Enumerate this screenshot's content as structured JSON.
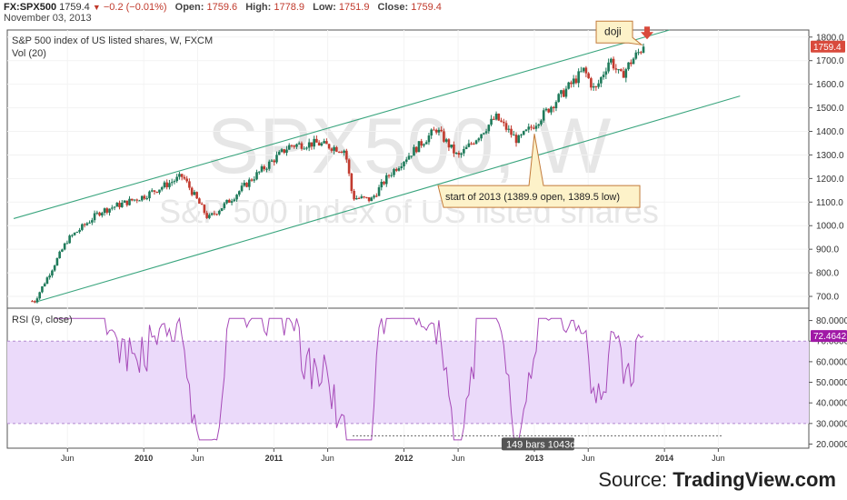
{
  "header": {
    "symbol": "FX:SPX500",
    "last": "1759.4",
    "change": "−0.2 (−0.01%)",
    "open_label": "Open:",
    "open": "1759.6",
    "high_label": "High:",
    "high": "1778.9",
    "low_label": "Low:",
    "low": "1751.9",
    "close_label": "Close:",
    "close": "1759.4",
    "date": "November 03, 2013",
    "down_arrow_icon": "triangle-down-icon"
  },
  "main_pane": {
    "title": "S&P 500 index of US listed shares, W, FXCM",
    "volume_label": "Vol (20)",
    "watermark_symbol": "SPX500, W",
    "watermark_desc": "S&P 500 index of US listed shares",
    "price_tag": "1759.4",
    "annotation_doji": "doji",
    "annotation_start": "start of 2013 (1389.9 open, 1389.5 low)",
    "arrow_icon": "red-down-arrow-icon"
  },
  "rsi_pane": {
    "title": "RSI (9, close)",
    "value_tag": "72.4642",
    "measure_label": "149 bars 1043d"
  },
  "colors": {
    "up": "#1e7a5a",
    "down": "#c23a2e",
    "channel": "#3aa57e",
    "rsi_line": "#a64ab8",
    "rsi_band": "#ebdafa",
    "price_tag": "#d94a3c",
    "rsi_tag": "#a019a6",
    "annotation_bg": "#fdf2c9",
    "annotation_border": "#c27a3a"
  },
  "source": {
    "prefix": "Source: ",
    "brand": "TradingView.com"
  },
  "chart_data": [
    {
      "type": "candlestick",
      "title": "S&P 500 index of US listed shares, W, FXCM",
      "x_ticks": [
        "Jun",
        "2010",
        "Jun",
        "2011",
        "Jun",
        "2012",
        "Jun",
        "2013",
        "Jun",
        "2014",
        "Jun"
      ],
      "y_ticks": [
        "700.0",
        "800.0",
        "900.0",
        "1000.0",
        "1100.0",
        "1200.0",
        "1300.0",
        "1400.0",
        "1500.0",
        "1600.0",
        "1700.0",
        "1800.0"
      ],
      "ylim": [
        650,
        1830
      ],
      "series_anchor_dates": [
        "2009-03-01",
        "2009-06-01",
        "2009-09-01",
        "2010-01-01",
        "2010-04-20",
        "2010-07-01",
        "2010-09-01",
        "2010-11-01",
        "2011-02-15",
        "2011-05-01",
        "2011-07-20",
        "2011-08-10",
        "2011-10-01",
        "2011-11-20",
        "2012-01-01",
        "2012-04-01",
        "2012-06-01",
        "2012-09-15",
        "2012-11-15",
        "2013-01-01",
        "2013-05-20",
        "2013-06-20",
        "2013-08-01",
        "2013-08-30",
        "2013-10-01",
        "2013-11-03"
      ],
      "series_anchor_closes": [
        680,
        940,
        1060,
        1125,
        1210,
        1030,
        1110,
        1200,
        1340,
        1350,
        1320,
        1120,
        1110,
        1215,
        1280,
        1410,
        1290,
        1460,
        1360,
        1430,
        1660,
        1570,
        1710,
        1630,
        1700,
        1759.4
      ],
      "last_price": 1759.4,
      "channel_upper": [
        {
          "x": "2009-01-01",
          "y": 1030
        },
        {
          "x": "2014-01-15",
          "y": 1830
        }
      ],
      "channel_lower": [
        {
          "x": "2009-03-01",
          "y": 675
        },
        {
          "x": "2014-08-01",
          "y": 1550
        }
      ],
      "annotations": [
        {
          "text": "doji",
          "at": "2013-11-03"
        },
        {
          "text": "start of 2013 (1389.9 open, 1389.5 low)",
          "at": "2013-01-01",
          "price": 1389.5
        }
      ]
    },
    {
      "type": "line",
      "title": "RSI (9, close)",
      "y_ticks": [
        "20.0000",
        "30.0000",
        "40.0000",
        "50.0000",
        "60.0000",
        "70.0000",
        "80.0000"
      ],
      "ylim": [
        18,
        86
      ],
      "band": [
        30,
        70
      ],
      "last_value": 72.4642,
      "measure": {
        "from": "2011-08-10",
        "to": "2014-06-15",
        "label": "149 bars 1043d",
        "level": 24
      }
    }
  ]
}
